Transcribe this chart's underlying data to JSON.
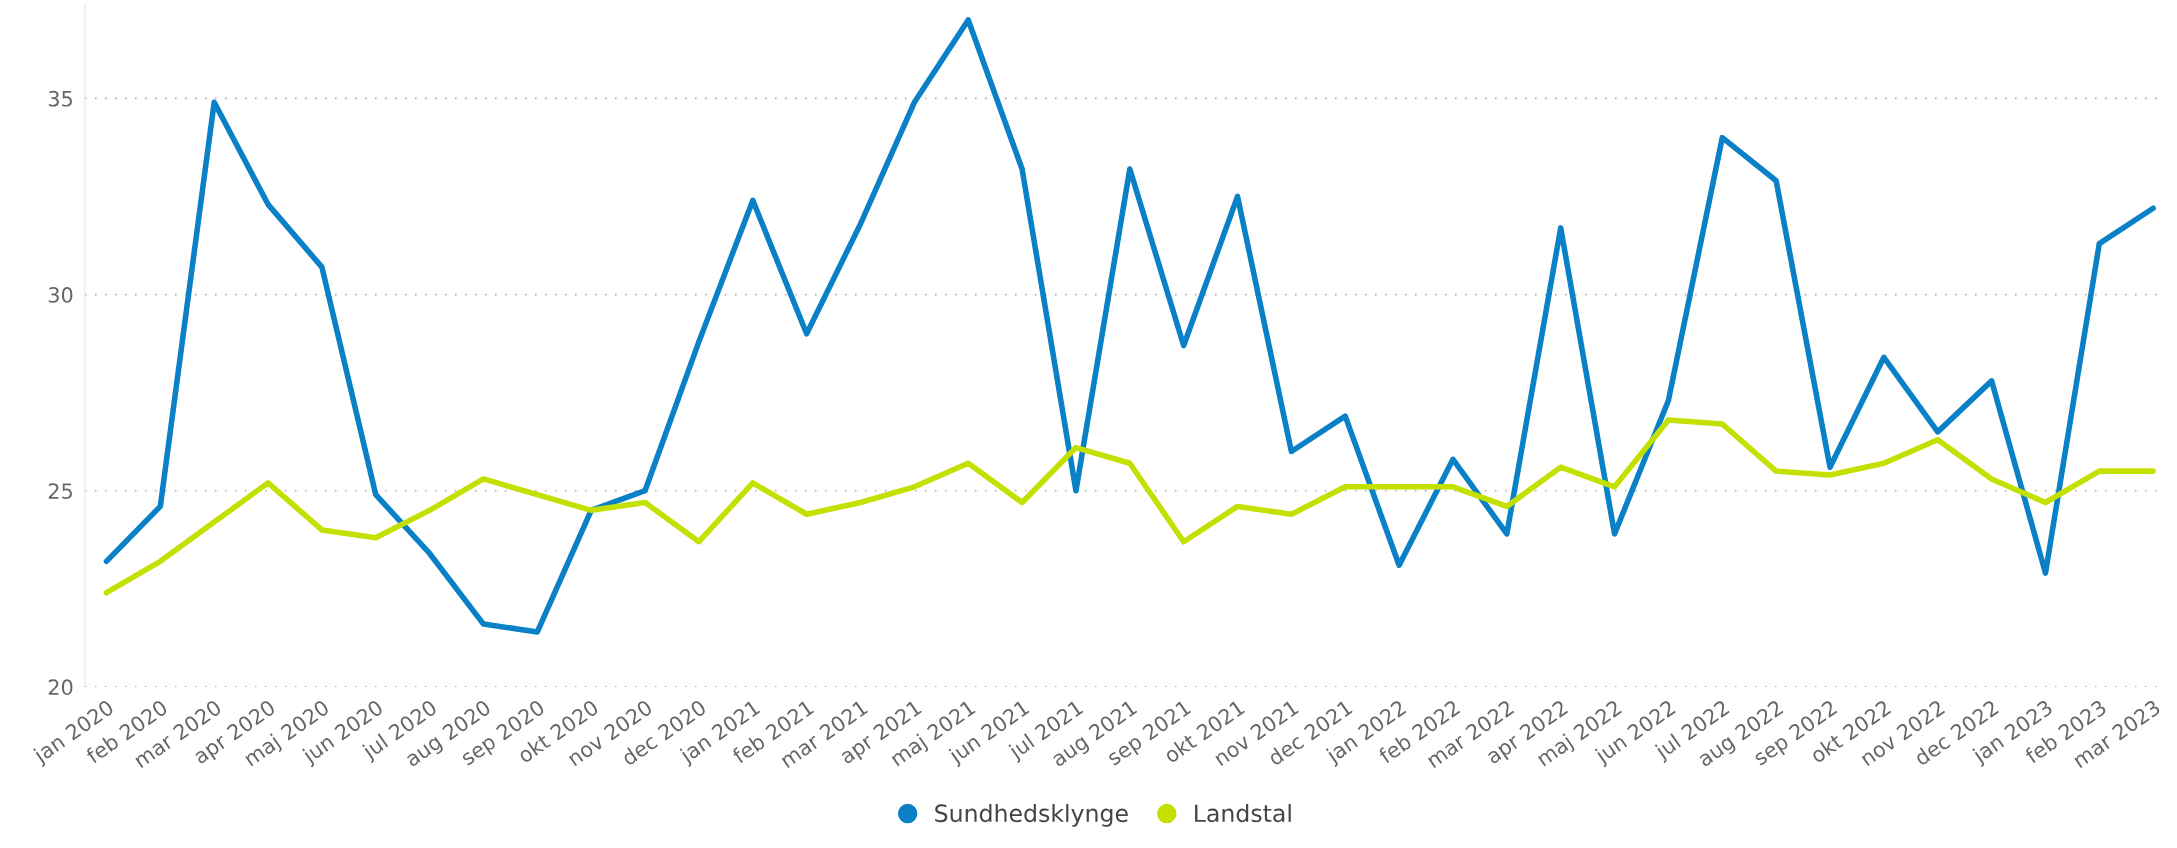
{
  "chart_data": {
    "type": "line",
    "categories": [
      "jan 2020",
      "feb 2020",
      "mar 2020",
      "apr 2020",
      "maj 2020",
      "jun 2020",
      "jul 2020",
      "aug 2020",
      "sep 2020",
      "okt 2020",
      "nov 2020",
      "dec 2020",
      "jan 2021",
      "feb 2021",
      "mar 2021",
      "apr 2021",
      "maj 2021",
      "jun 2021",
      "jul 2021",
      "aug 2021",
      "sep 2021",
      "okt 2021",
      "nov 2021",
      "dec 2021",
      "jan 2022",
      "feb 2022",
      "mar 2022",
      "apr 2022",
      "maj 2022",
      "jun 2022",
      "jul 2022",
      "aug 2022",
      "sep 2022",
      "okt 2022",
      "nov 2022",
      "dec 2022",
      "jan 2023",
      "feb 2023",
      "mar 2023"
    ],
    "series": [
      {
        "name": "Sundhedsklynge",
        "color": "#0a80c6",
        "values": [
          23.2,
          24.6,
          34.9,
          32.3,
          30.7,
          24.9,
          23.4,
          21.6,
          21.4,
          24.5,
          25.0,
          28.8,
          32.4,
          29.0,
          31.8,
          34.9,
          37.0,
          33.2,
          25.0,
          33.2,
          28.7,
          32.5,
          26.0,
          26.9,
          23.1,
          25.8,
          23.9,
          31.7,
          23.9,
          27.3,
          34.0,
          32.9,
          25.6,
          28.4,
          26.5,
          27.8,
          22.9,
          31.3,
          32.2
        ]
      },
      {
        "name": "Landstal",
        "color": "#c3e000",
        "values": [
          22.4,
          23.2,
          24.2,
          25.2,
          24.0,
          23.8,
          24.5,
          25.3,
          24.9,
          24.5,
          24.7,
          23.7,
          25.2,
          24.4,
          24.7,
          25.1,
          25.7,
          24.7,
          26.1,
          25.7,
          23.7,
          24.6,
          24.4,
          25.1,
          25.1,
          25.1,
          24.6,
          25.6,
          25.1,
          26.8,
          26.7,
          25.5,
          25.4,
          25.7,
          26.3,
          25.3,
          24.7,
          25.5,
          25.5
        ]
      }
    ],
    "ylim": [
      20,
      37.4
    ],
    "yticks": [
      20,
      25,
      30,
      35
    ],
    "grid": "y",
    "legend": "bottom",
    "marker": "none",
    "line_style": "solid"
  }
}
